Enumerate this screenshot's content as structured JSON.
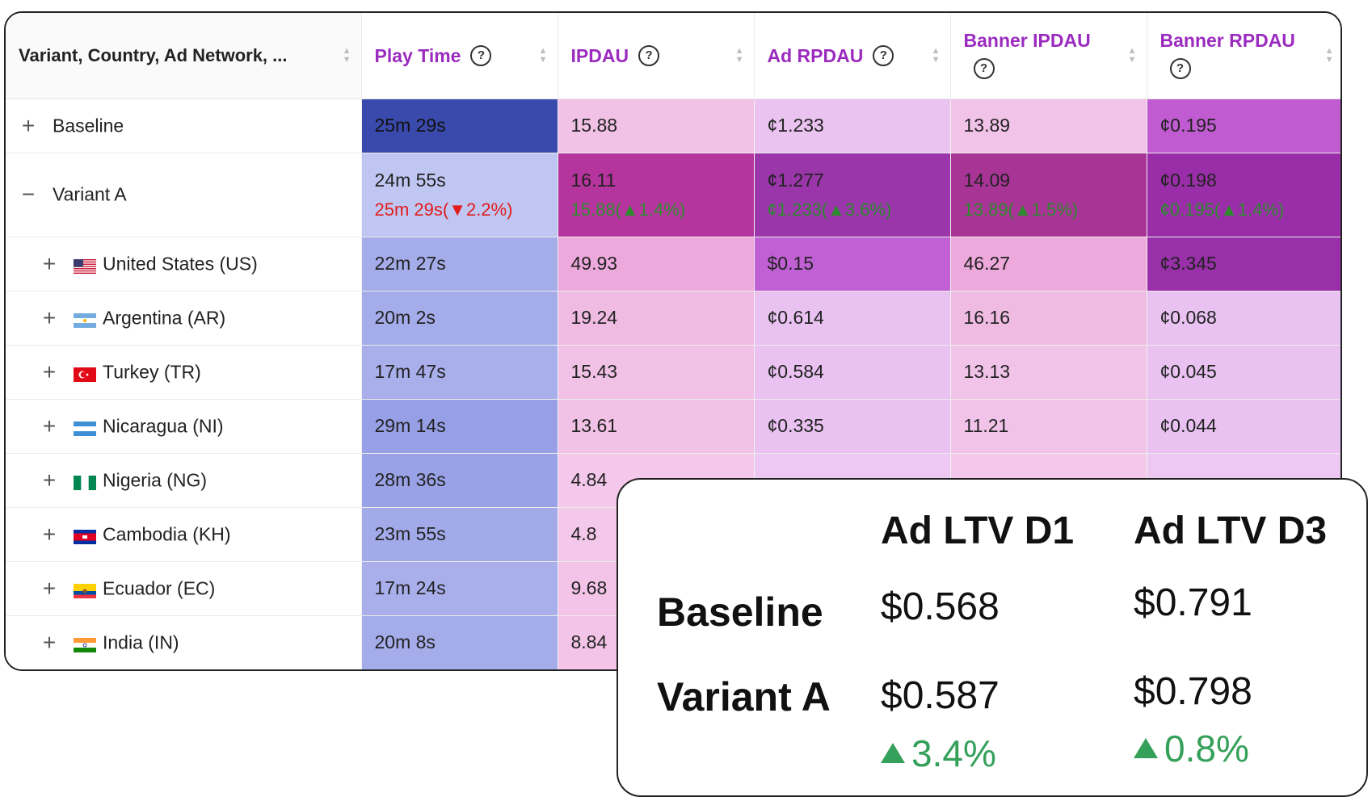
{
  "colors": {
    "header_text": "#9b2bbf",
    "delta_up": "#2e8b2e",
    "delta_down": "#e21b1b",
    "overlay_delta": "#35a05a"
  },
  "columns": [
    {
      "label": "Variant, Country, Ad Network, ...",
      "help": false
    },
    {
      "label": "Play Time",
      "help": true
    },
    {
      "label": "IPDAU",
      "help": true
    },
    {
      "label": "Ad RPDAU",
      "help": true
    },
    {
      "label": "Banner IPDAU",
      "help": true
    },
    {
      "label": "Banner RPDAU",
      "help": true
    }
  ],
  "help_icon": "question-circle-icon",
  "rows": [
    {
      "label": "Baseline",
      "expander": "+",
      "indent": false,
      "cells": [
        {
          "value": "25m 29s",
          "bg": "#3a4aac",
          "fg": "#111111"
        },
        {
          "value": "15.88",
          "bg": "#f2c1e6",
          "fg": "#222222"
        },
        {
          "value": "¢1.233",
          "bg": "#eac3f0",
          "fg": "#222222"
        },
        {
          "value": "13.89",
          "bg": "#f2c3e9",
          "fg": "#222222"
        },
        {
          "value": "¢0.195",
          "bg": "#c05bd1",
          "fg": "#222222"
        }
      ]
    },
    {
      "label": "Variant A",
      "expander": "−",
      "indent": false,
      "tall": true,
      "cells": [
        {
          "value": "24m 55s",
          "sub": "25m 29s(",
          "sub_arrow": "▼",
          "sub_pct": "2.2%)",
          "sub_color": "red",
          "bg": "#c0c6f2",
          "fg": "#222222"
        },
        {
          "value": "16.11",
          "sub": "15.88(",
          "sub_arrow": "▲",
          "sub_pct": "1.4%)",
          "sub_color": "green",
          "bg": "#b5349d",
          "fg": "#222222"
        },
        {
          "value": "¢1.277",
          "sub": "¢1.233(",
          "sub_arrow": "▲",
          "sub_pct": "3.6%)",
          "sub_color": "green",
          "bg": "#9a35aa",
          "fg": "#222222"
        },
        {
          "value": "14.09",
          "sub": "13.89(",
          "sub_arrow": "▲",
          "sub_pct": "1.5%)",
          "sub_color": "green",
          "bg": "#a83595",
          "fg": "#222222"
        },
        {
          "value": "¢0.198",
          "sub": "¢0.195(",
          "sub_arrow": "▲",
          "sub_pct": "1.4%)",
          "sub_color": "green",
          "bg": "#9a2ea8",
          "fg": "#222222"
        }
      ]
    },
    {
      "label": "United States (US)",
      "expander": "+",
      "indent": true,
      "flag": "us",
      "cells": [
        {
          "value": "22m 27s",
          "bg": "#a4acea",
          "fg": "#222222"
        },
        {
          "value": "49.93",
          "bg": "#eda8dc",
          "fg": "#222222"
        },
        {
          "value": "$0.15",
          "bg": "#c060d4",
          "fg": "#222222"
        },
        {
          "value": "46.27",
          "bg": "#eda8dc",
          "fg": "#222222"
        },
        {
          "value": "¢3.345",
          "bg": "#9930aa",
          "fg": "#222222"
        }
      ]
    },
    {
      "label": "Argentina (AR)",
      "expander": "+",
      "indent": true,
      "flag": "ar",
      "cells": [
        {
          "value": "20m 2s",
          "bg": "#a4acea",
          "fg": "#222222"
        },
        {
          "value": "19.24",
          "bg": "#f0bbe3",
          "fg": "#222222"
        },
        {
          "value": "¢0.614",
          "bg": "#e9c2f1",
          "fg": "#222222"
        },
        {
          "value": "16.16",
          "bg": "#f0bbe3",
          "fg": "#222222"
        },
        {
          "value": "¢0.068",
          "bg": "#e9c2f1",
          "fg": "#222222"
        }
      ]
    },
    {
      "label": "Turkey (TR)",
      "expander": "+",
      "indent": true,
      "flag": "tr",
      "cells": [
        {
          "value": "17m 47s",
          "bg": "#a8afeb",
          "fg": "#222222"
        },
        {
          "value": "15.43",
          "bg": "#f2c1e6",
          "fg": "#222222"
        },
        {
          "value": "¢0.584",
          "bg": "#e9c2f1",
          "fg": "#222222"
        },
        {
          "value": "13.13",
          "bg": "#f2c3e9",
          "fg": "#222222"
        },
        {
          "value": "¢0.045",
          "bg": "#e9c2f1",
          "fg": "#222222"
        }
      ]
    },
    {
      "label": "Nicaragua (NI)",
      "expander": "+",
      "indent": true,
      "flag": "ni",
      "cells": [
        {
          "value": "29m 14s",
          "bg": "#97a0e6",
          "fg": "#222222"
        },
        {
          "value": "13.61",
          "bg": "#f2c1e6",
          "fg": "#222222"
        },
        {
          "value": "¢0.335",
          "bg": "#e9c2f1",
          "fg": "#222222"
        },
        {
          "value": "11.21",
          "bg": "#f2c3e9",
          "fg": "#222222"
        },
        {
          "value": "¢0.044",
          "bg": "#e9c2f1",
          "fg": "#222222"
        }
      ]
    },
    {
      "label": "Nigeria (NG)",
      "expander": "+",
      "indent": true,
      "flag": "ng",
      "cells": [
        {
          "value": "28m 36s",
          "bg": "#99a2e6",
          "fg": "#222222"
        },
        {
          "value": "4.84",
          "bg": "#f4c8ea",
          "fg": "#222222"
        },
        {
          "value": "",
          "bg": "#ecc8f3",
          "fg": "#222222"
        },
        {
          "value": "",
          "bg": "#f4c8ea",
          "fg": "#222222"
        },
        {
          "value": "",
          "bg": "#ecc8f3",
          "fg": "#222222"
        }
      ]
    },
    {
      "label": "Cambodia (KH)",
      "expander": "+",
      "indent": true,
      "flag": "kh",
      "cells": [
        {
          "value": "23m 55s",
          "bg": "#a2aaea",
          "fg": "#222222"
        },
        {
          "value": "4.8",
          "bg": "#f4c8ea",
          "fg": "#222222"
        },
        {
          "value": "",
          "bg": "#ecc8f3",
          "fg": "#222222"
        },
        {
          "value": "",
          "bg": "#f4c8ea",
          "fg": "#222222"
        },
        {
          "value": "",
          "bg": "#ecc8f3",
          "fg": "#222222"
        }
      ]
    },
    {
      "label": "Ecuador (EC)",
      "expander": "+",
      "indent": true,
      "flag": "ec",
      "cells": [
        {
          "value": "17m 24s",
          "bg": "#a8afeb",
          "fg": "#222222"
        },
        {
          "value": "9.68",
          "bg": "#f3c4e8",
          "fg": "#222222"
        },
        {
          "value": "",
          "bg": "#ecc8f3",
          "fg": "#222222"
        },
        {
          "value": "",
          "bg": "#f4c8ea",
          "fg": "#222222"
        },
        {
          "value": "",
          "bg": "#ecc8f3",
          "fg": "#222222"
        }
      ]
    },
    {
      "label": "India (IN)",
      "expander": "+",
      "indent": true,
      "flag": "in",
      "cells": [
        {
          "value": "20m 8s",
          "bg": "#a4acea",
          "fg": "#222222"
        },
        {
          "value": "8.84",
          "bg": "#f3c4e8",
          "fg": "#222222"
        },
        {
          "value": "",
          "bg": "#ecc8f3",
          "fg": "#222222"
        },
        {
          "value": "",
          "bg": "#f4c8ea",
          "fg": "#222222"
        },
        {
          "value": "",
          "bg": "#ecc8f3",
          "fg": "#222222"
        }
      ]
    }
  ],
  "overlay": {
    "headers": [
      "Ad LTV D1",
      "Ad LTV D3"
    ],
    "rows": [
      {
        "label": "Baseline",
        "d1": "$0.568",
        "d3": "$0.791"
      },
      {
        "label": "Variant A",
        "d1": "$0.587",
        "d3": "$0.798",
        "d1_delta": "3.4%",
        "d3_delta": "0.8%"
      }
    ]
  }
}
